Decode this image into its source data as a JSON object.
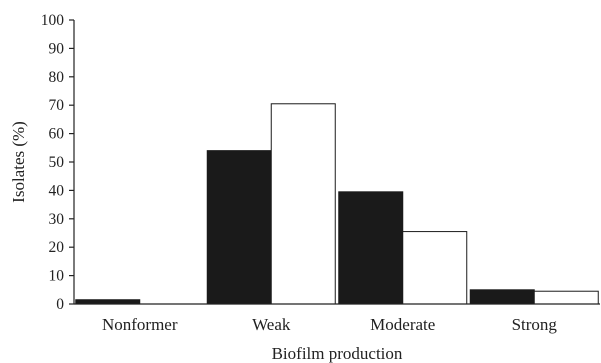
{
  "chart_data": {
    "type": "bar",
    "xlabel": "Biofilm production",
    "ylabel": "Isolates (%)",
    "categories": [
      "Nonformer",
      "Weak",
      "Moderate",
      "Strong"
    ],
    "series": [
      {
        "values": [
          1.5,
          54,
          39.5,
          5
        ],
        "color": "#1a1a1a"
      },
      {
        "values": [
          0,
          70.5,
          25.5,
          4.5
        ],
        "color": "#ffffff"
      }
    ],
    "ylim": [
      0,
      100
    ],
    "yticks": [
      0,
      10,
      20,
      30,
      40,
      50,
      60,
      70,
      80,
      90,
      100
    ],
    "grid": false,
    "legend": "none"
  }
}
